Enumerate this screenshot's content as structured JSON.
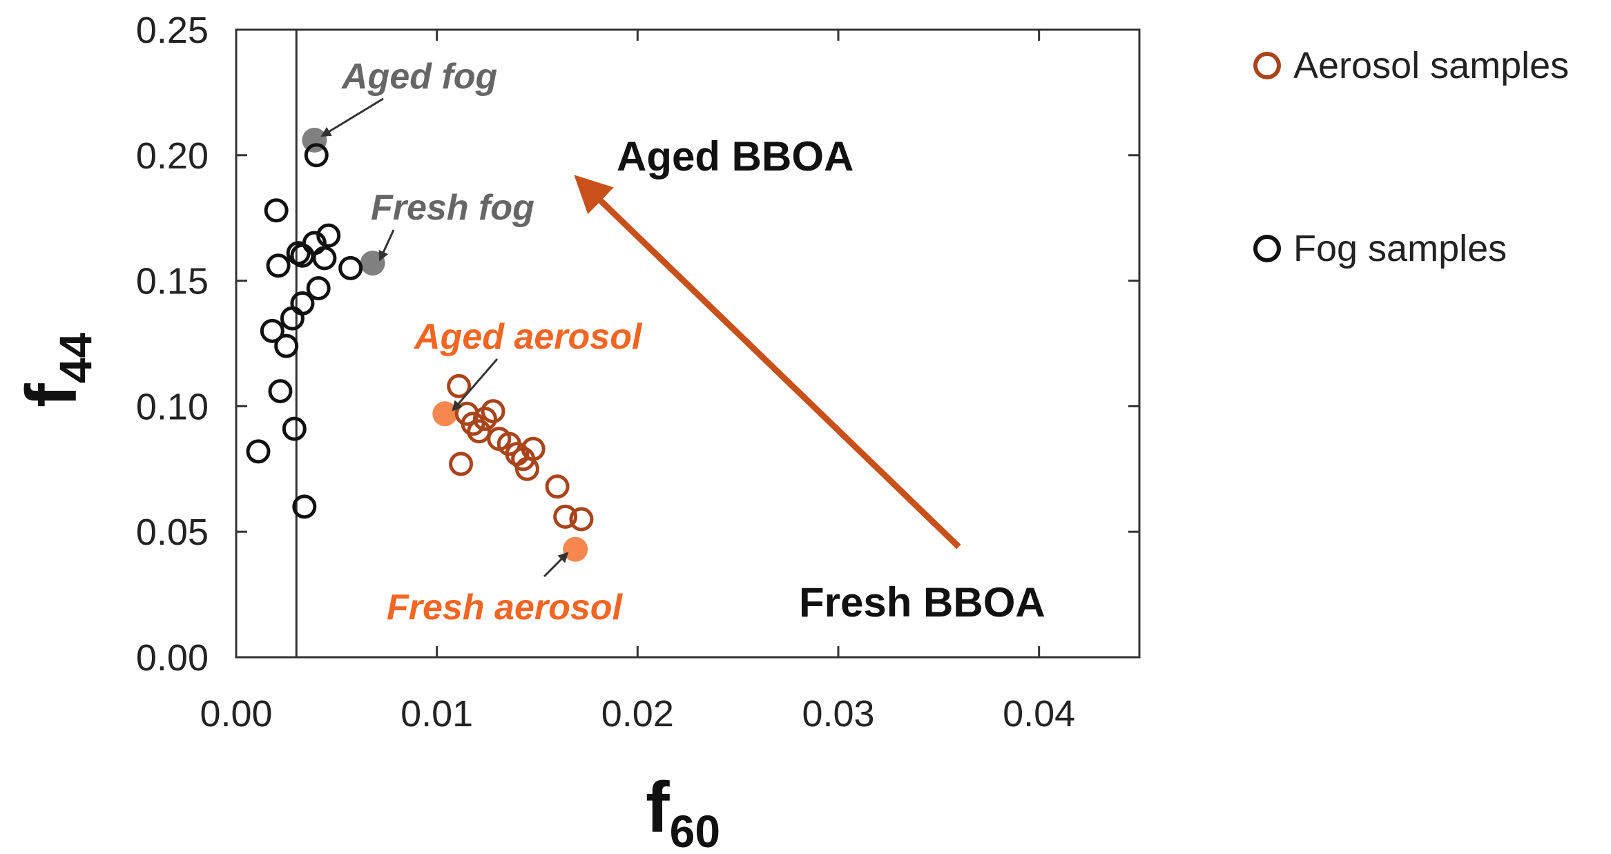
{
  "colors": {
    "fog": "#111111",
    "aerosol": "#a9441b",
    "highlight_fog": "#808080",
    "highlight_aerosol": "#f5874f",
    "aerosol_label": "#f26522",
    "fog_label": "#666666",
    "arrow": "#c8501a",
    "axis": "#333333"
  },
  "chart_data": {
    "type": "scatter",
    "xlabel": "f",
    "xlabel_sub": "60",
    "ylabel": "f",
    "ylabel_sub": "44",
    "xlim": [
      0.0,
      0.045
    ],
    "ylim": [
      0.0,
      0.25
    ],
    "xticks": [
      0.0,
      0.01,
      0.02,
      0.03,
      0.04
    ],
    "xtick_labels": [
      "0.00",
      "0.01",
      "0.02",
      "0.03",
      "0.04"
    ],
    "yticks": [
      0.0,
      0.05,
      0.1,
      0.15,
      0.2,
      0.25
    ],
    "ytick_labels": [
      "0.00",
      "0.05",
      "0.10",
      "0.15",
      "0.20",
      "0.25"
    ],
    "reference_line_x": 0.003,
    "series": [
      {
        "name": "Aerosol samples",
        "marker": "open-circle",
        "color": "#a9441b",
        "points": [
          [
            0.0111,
            0.108
          ],
          [
            0.0115,
            0.097
          ],
          [
            0.0118,
            0.093
          ],
          [
            0.0121,
            0.09
          ],
          [
            0.0124,
            0.095
          ],
          [
            0.0128,
            0.098
          ],
          [
            0.0131,
            0.087
          ],
          [
            0.0136,
            0.085
          ],
          [
            0.014,
            0.081
          ],
          [
            0.0143,
            0.079
          ],
          [
            0.0145,
            0.075
          ],
          [
            0.0148,
            0.083
          ],
          [
            0.0112,
            0.077
          ],
          [
            0.016,
            0.068
          ],
          [
            0.0164,
            0.056
          ],
          [
            0.0172,
            0.055
          ]
        ]
      },
      {
        "name": "Fog samples",
        "marker": "open-circle",
        "color": "#111111",
        "points": [
          [
            0.0011,
            0.082
          ],
          [
            0.0018,
            0.13
          ],
          [
            0.002,
            0.178
          ],
          [
            0.0021,
            0.156
          ],
          [
            0.0022,
            0.106
          ],
          [
            0.0025,
            0.124
          ],
          [
            0.0028,
            0.135
          ],
          [
            0.0029,
            0.091
          ],
          [
            0.0031,
            0.161
          ],
          [
            0.0033,
            0.16
          ],
          [
            0.0033,
            0.141
          ],
          [
            0.0034,
            0.06
          ],
          [
            0.0039,
            0.165
          ],
          [
            0.004,
            0.2
          ],
          [
            0.0041,
            0.147
          ],
          [
            0.0044,
            0.159
          ],
          [
            0.0046,
            0.168
          ],
          [
            0.0057,
            0.155
          ]
        ]
      }
    ],
    "highlights": [
      {
        "name": "Aged fog",
        "x": 0.0039,
        "y": 0.206,
        "color": "#808080"
      },
      {
        "name": "Fresh fog",
        "x": 0.0068,
        "y": 0.157,
        "color": "#808080"
      },
      {
        "name": "Aged aerosol",
        "x": 0.0104,
        "y": 0.097,
        "color": "#f5874f"
      },
      {
        "name": "Fresh aerosol",
        "x": 0.0169,
        "y": 0.043,
        "color": "#f5874f"
      }
    ],
    "annotations": {
      "aged_fog": "Aged fog",
      "fresh_fog": "Fresh fog",
      "aged_aerosol": "Aged aerosol",
      "fresh_aerosol": "Fresh aerosol",
      "aged_bboa": "Aged BBOA",
      "fresh_bboa": "Fresh BBOA"
    },
    "trend_arrow": {
      "from": [
        0.036,
        0.044
      ],
      "to": [
        0.0175,
        0.187
      ]
    },
    "legend": {
      "position": "outside-right",
      "entries": [
        "Aerosol samples",
        "Fog samples"
      ]
    }
  }
}
